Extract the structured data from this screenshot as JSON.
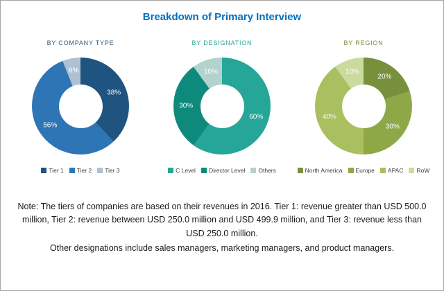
{
  "title": "Breakdown of Primary Interview",
  "title_color": "#0070c0",
  "notes": [
    "Note: The tiers of companies are based on their revenues in 2016. Tier 1: revenue greater than USD 500.0 million, Tier 2: revenue between USD 250.0 million and USD 499.9 million, and Tier 3: revenue less than USD 250.0 million.",
    "Other designations include sales managers, marketing managers, and product managers."
  ],
  "chart_data": [
    {
      "type": "pie",
      "subtype": "donut",
      "title": "BY COMPANY TYPE",
      "header_color": "#2e5a7d",
      "labels": [
        "Tier 1",
        "Tier 2",
        "Tier 3"
      ],
      "values": [
        38,
        56,
        6
      ],
      "value_labels": [
        "38%",
        "56%",
        "6%"
      ],
      "colors": [
        "#1f5380",
        "#2e75b6",
        "#b0c0d4"
      ],
      "start_angle": "top",
      "direction": "clockwise",
      "legend_position": "bottom"
    },
    {
      "type": "pie",
      "subtype": "donut",
      "title": "BY DESIGNATION",
      "header_color": "#26a699",
      "labels": [
        "C Level",
        "Director Level",
        "Others"
      ],
      "values": [
        60,
        30,
        10
      ],
      "value_labels": [
        "60%",
        "30%",
        "10%"
      ],
      "colors": [
        "#26a699",
        "#0e8a7d",
        "#b4d2cd"
      ],
      "start_angle": "top",
      "direction": "clockwise",
      "legend_position": "bottom"
    },
    {
      "type": "pie",
      "subtype": "donut",
      "title": "BY REGION",
      "header_color": "#7a8f3c",
      "labels": [
        "North America",
        "Europe",
        "APAC",
        "RoW"
      ],
      "values": [
        20,
        30,
        40,
        10
      ],
      "value_labels": [
        "20%",
        "30%",
        "40%",
        "10%"
      ],
      "colors": [
        "#78903c",
        "#8fa847",
        "#a9bf60",
        "#cbda9f"
      ],
      "start_angle": "top",
      "direction": "clockwise",
      "legend_position": "bottom"
    }
  ]
}
